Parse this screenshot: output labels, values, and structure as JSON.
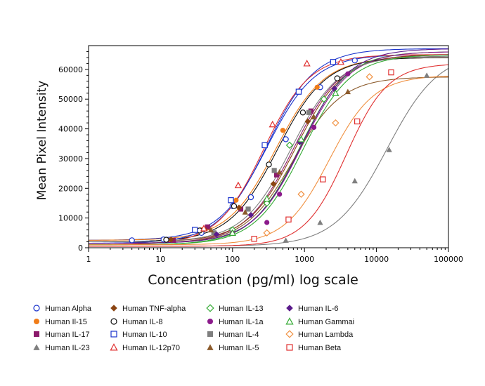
{
  "chart_data": {
    "type": "scatter",
    "title": "",
    "xlabel": "Concentration (pg/ml) log scale",
    "ylabel": "Mean Pixel Intensity",
    "x_scale": "log",
    "xlim": [
      1,
      100000
    ],
    "ylim": [
      0,
      68000
    ],
    "x_ticks": [
      1,
      10,
      100,
      1000,
      10000,
      100000
    ],
    "x_tick_labels": [
      "1",
      "10",
      "100",
      "1000",
      "10000",
      "100000"
    ],
    "y_ticks": [
      0,
      10000,
      20000,
      30000,
      40000,
      50000,
      60000
    ],
    "y_tick_labels": [
      "0",
      "10000",
      "20000",
      "30000",
      "40000",
      "50000",
      "60000"
    ],
    "grid": false,
    "legend_position": "bottom",
    "series": [
      {
        "name": "Human Alpha",
        "color": "#1a33cc",
        "marker": "circle-open",
        "bottom": 2500,
        "top": 65000,
        "ec50": 300,
        "slope": 1.3,
        "points": [
          [
            4,
            2500
          ],
          [
            11,
            2800
          ],
          [
            37,
            5000
          ],
          [
            100,
            14000
          ],
          [
            180,
            17000
          ],
          [
            550,
            36500
          ],
          [
            1650,
            54000
          ],
          [
            5000,
            63000
          ]
        ]
      },
      {
        "name": "Human Il-15",
        "color": "#f07c18",
        "marker": "circle-filled",
        "bottom": 2500,
        "top": 64000,
        "ec50": 400,
        "slope": 1.3,
        "points": [
          [
            37,
            6000
          ],
          [
            112,
            16000
          ],
          [
            500,
            39500
          ],
          [
            1500,
            54000
          ]
        ]
      },
      {
        "name": "Human IL-17",
        "color": "#8b1a6b",
        "marker": "square-filled",
        "bottom": 1500,
        "top": 65000,
        "ec50": 700,
        "slope": 1.3,
        "points": [
          [
            15,
            2500
          ],
          [
            45,
            7000
          ],
          [
            130,
            13000
          ],
          [
            410,
            24500
          ],
          [
            1230,
            46000
          ]
        ]
      },
      {
        "name": "Human IL-23",
        "color": "#7f7f7f",
        "marker": "triangle-filled",
        "bottom": 500,
        "top": 66000,
        "ec50": 14000,
        "slope": 1.2,
        "points": [
          [
            550,
            2500
          ],
          [
            1650,
            8500
          ],
          [
            5000,
            22500
          ],
          [
            15000,
            33000
          ],
          [
            50000,
            58000
          ]
        ]
      },
      {
        "name": "Human TNF-alpha",
        "color": "#8b4513",
        "marker": "diamond-filled",
        "bottom": 2000,
        "top": 65000,
        "ec50": 750,
        "slope": 1.3,
        "points": [
          [
            14,
            2800
          ],
          [
            41,
            6200
          ],
          [
            123,
            13500
          ],
          [
            370,
            21500
          ],
          [
            1110,
            42500
          ]
        ]
      },
      {
        "name": "Human IL-8",
        "color": "#111111",
        "marker": "circle-open",
        "bottom": 2000,
        "top": 64000,
        "ec50": 420,
        "slope": 1.3,
        "points": [
          [
            12,
            2700
          ],
          [
            35,
            5800
          ],
          [
            105,
            14000
          ],
          [
            320,
            28000
          ],
          [
            950,
            45500
          ],
          [
            2850,
            57000
          ]
        ]
      },
      {
        "name": "Human IL-10",
        "color": "#1a33cc",
        "marker": "square-open",
        "bottom": 1500,
        "top": 67000,
        "ec50": 300,
        "slope": 1.3,
        "points": [
          [
            30,
            6000
          ],
          [
            95,
            16000
          ],
          [
            280,
            34500
          ],
          [
            830,
            52500
          ],
          [
            2500,
            62500
          ]
        ]
      },
      {
        "name": "Human IL-12p70",
        "color": "#e03030",
        "marker": "triangle-open",
        "bottom": 1000,
        "top": 65000,
        "ec50": 270,
        "slope": 1.35,
        "points": [
          [
            40,
            6500
          ],
          [
            120,
            21000
          ],
          [
            360,
            41500
          ],
          [
            1080,
            62000
          ],
          [
            3200,
            62500
          ]
        ]
      },
      {
        "name": "Human IL-13",
        "color": "#33aa33",
        "marker": "diamond-open",
        "bottom": 1000,
        "top": 66000,
        "ec50": 850,
        "slope": 1.3,
        "points": [
          [
            100,
            6000
          ],
          [
            300,
            15000
          ],
          [
            620,
            34500
          ],
          [
            1860,
            50000
          ]
        ]
      },
      {
        "name": "Human IL-1a",
        "color": "#8b1a8b",
        "marker": "circle-filled",
        "bottom": 1500,
        "top": 66000,
        "ec50": 900,
        "slope": 1.3,
        "points": [
          [
            100,
            5000
          ],
          [
            300,
            8500
          ],
          [
            450,
            18000
          ],
          [
            1350,
            40500
          ],
          [
            4000,
            58500
          ]
        ]
      },
      {
        "name": "Human IL-4",
        "color": "#7f7f7f",
        "marker": "square-filled",
        "bottom": 2000,
        "top": 64500,
        "ec50": 650,
        "slope": 1.3,
        "points": [
          [
            55,
            5000
          ],
          [
            165,
            13000
          ],
          [
            380,
            26000
          ],
          [
            1150,
            45500
          ]
        ]
      },
      {
        "name": "Human IL-5",
        "color": "#8b5a2b",
        "marker": "triangle-filled",
        "bottom": 1500,
        "top": 57500,
        "ec50": 700,
        "slope": 1.3,
        "points": [
          [
            50,
            6000
          ],
          [
            150,
            12000
          ],
          [
            450,
            25500
          ],
          [
            1350,
            44000
          ],
          [
            4000,
            52500
          ]
        ]
      },
      {
        "name": "Human IL-6",
        "color": "#5a1a8b",
        "marker": "diamond-filled",
        "bottom": 1500,
        "top": 67000,
        "ec50": 900,
        "slope": 1.3,
        "points": [
          [
            60,
            4500
          ],
          [
            180,
            11000
          ],
          [
            860,
            35500
          ],
          [
            2600,
            53500
          ]
        ]
      },
      {
        "name": "Human Gammai",
        "color": "#33aa33",
        "marker": "triangle-open",
        "bottom": 1000,
        "top": 65000,
        "ec50": 950,
        "slope": 1.3,
        "points": [
          [
            100,
            5000
          ],
          [
            300,
            16500
          ],
          [
            900,
            36500
          ],
          [
            2700,
            52000
          ]
        ]
      },
      {
        "name": "Human Lambda",
        "color": "#f09040",
        "marker": "diamond-open",
        "bottom": 1000,
        "top": 58000,
        "ec50": 2200,
        "slope": 1.4,
        "points": [
          [
            300,
            5000
          ],
          [
            900,
            18000
          ],
          [
            2700,
            42000
          ],
          [
            8000,
            57500
          ]
        ]
      },
      {
        "name": "Human Beta",
        "color": "#e03030",
        "marker": "square-open",
        "bottom": 500,
        "top": 62000,
        "ec50": 3800,
        "slope": 1.5,
        "points": [
          [
            200,
            3000
          ],
          [
            600,
            9500
          ],
          [
            1800,
            23000
          ],
          [
            5400,
            42500
          ],
          [
            16000,
            59000
          ]
        ]
      }
    ]
  }
}
